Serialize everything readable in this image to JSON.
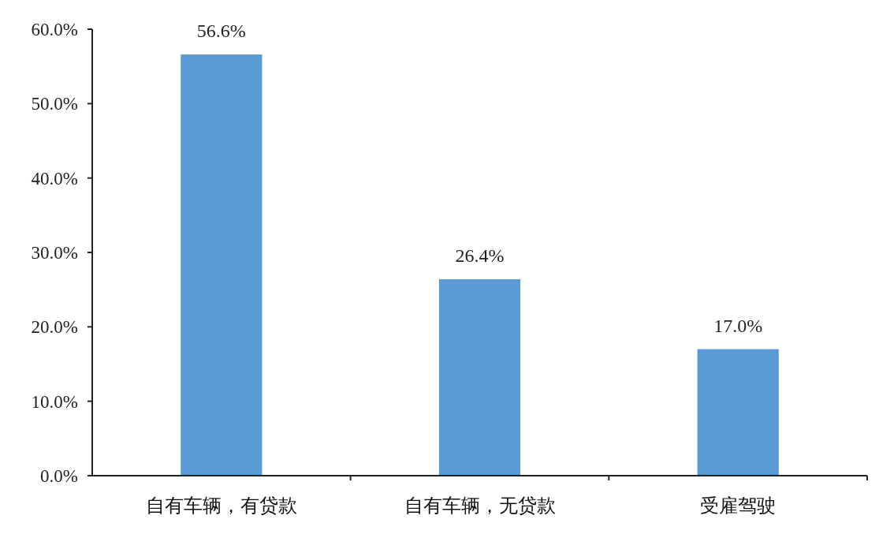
{
  "chart_data": {
    "type": "bar",
    "categories": [
      "自有车辆，有贷款",
      "自有车辆，无贷款",
      "受雇驾驶"
    ],
    "values": [
      56.6,
      26.4,
      17.0
    ],
    "value_labels": [
      "56.6%",
      "26.4%",
      "17.0%"
    ],
    "color": "#5b9bd5",
    "ylim": [
      0,
      60
    ],
    "yticks": [
      {
        "value": 0,
        "label": "0.0%"
      },
      {
        "value": 10,
        "label": "10.0%"
      },
      {
        "value": 20,
        "label": "20.0%"
      },
      {
        "value": 30,
        "label": "30.0%"
      },
      {
        "value": 40,
        "label": "40.0%"
      },
      {
        "value": 50,
        "label": "50.0%"
      },
      {
        "value": 60,
        "label": "60.0%"
      }
    ],
    "grid": false
  }
}
